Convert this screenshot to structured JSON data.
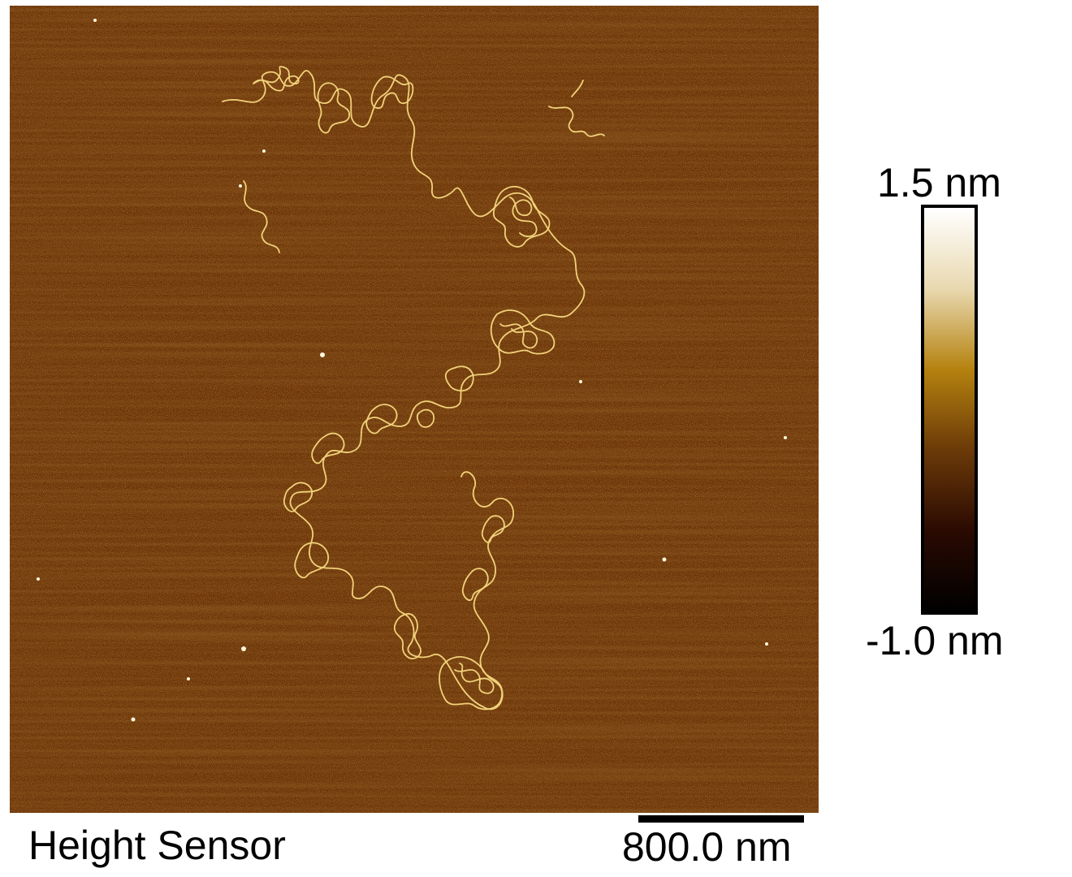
{
  "image": {
    "subject": "dna-strands-on-substrate",
    "background_color": "#6b3306",
    "noise_color": "#9a5a1c",
    "strand_color": "#f1d27a",
    "highlight_color": "#fff7dc"
  },
  "colorbar": {
    "max_label": "1.5 nm",
    "min_label": "-1.0 nm",
    "gradient_colors": [
      "#ffffff",
      "#e9d9b0",
      "#b5820f",
      "#6b3a08",
      "#2a0a02",
      "#000000"
    ]
  },
  "scale_bar": {
    "label": "800.0 nm"
  },
  "channel": {
    "label": "Height Sensor"
  }
}
